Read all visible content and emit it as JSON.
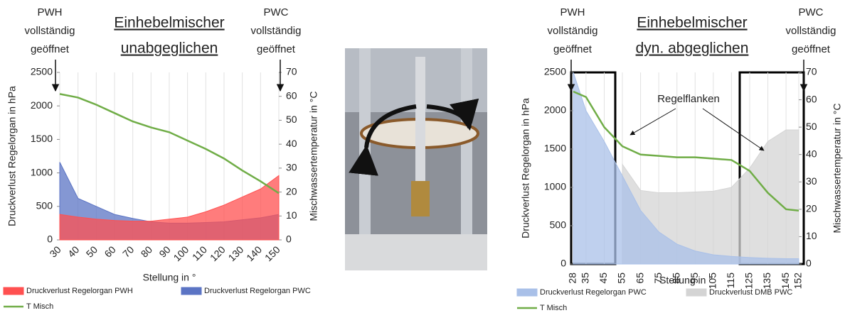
{
  "chart_data": [
    {
      "type": "area-line",
      "title": [
        "Einhebelmischer",
        "unabgeglichen"
      ],
      "left_note": [
        "PWH",
        "vollständig",
        "geöffnet"
      ],
      "right_note": [
        "PWC",
        "vollständig",
        "geöffnet"
      ],
      "x_label": "Stellung in °",
      "y_label": "Druckverlust Regelorgan in hPa",
      "y2_label": "Mischwassertemperatur in °C",
      "x": [
        30,
        40,
        50,
        60,
        70,
        80,
        90,
        100,
        110,
        120,
        130,
        140,
        150
      ],
      "xlim": [
        30,
        150
      ],
      "xticks": [
        30,
        40,
        50,
        60,
        70,
        80,
        90,
        100,
        110,
        120,
        130,
        140,
        150
      ],
      "ylim": [
        0,
        2500
      ],
      "yticks": [
        0,
        500,
        1000,
        1500,
        2000,
        2500
      ],
      "y2lim": [
        0,
        70
      ],
      "y2ticks": [
        0,
        10,
        20,
        30,
        40,
        50,
        60,
        70
      ],
      "grid": true,
      "series": [
        {
          "name": "Druckverlust Regelorgan PWH",
          "type": "area",
          "color": "#ff5050",
          "values": [
            380,
            340,
            310,
            290,
            280,
            280,
            310,
            340,
            420,
            520,
            640,
            760,
            960
          ]
        },
        {
          "name": "Druckverlust Regelorgan PWC",
          "type": "area",
          "color": "#5b74c4",
          "values": [
            1160,
            620,
            500,
            380,
            320,
            270,
            250,
            250,
            260,
            270,
            300,
            330,
            380
          ]
        },
        {
          "name": "T Misch",
          "type": "line",
          "axis": "y2",
          "color": "#70ad47",
          "values": [
            61,
            59.5,
            56.5,
            53,
            49.5,
            47,
            45,
            41.5,
            38,
            34,
            29,
            24.5,
            19.5
          ]
        }
      ]
    },
    {
      "type": "area-line",
      "title": [
        "Einhebelmischer",
        "dyn. abgeglichen"
      ],
      "left_note": [
        "PWH",
        "vollständig",
        "geöffnet"
      ],
      "right_note": [
        "PWC",
        "vollständig",
        "geöffnet"
      ],
      "annotation": "Regelflanken",
      "x_label": "Stellung in °",
      "y_label": "Druckverlust Regelorgan in hPa",
      "y2_label": "Mischwassertemperatur in °C",
      "x": [
        28,
        35,
        45,
        55,
        65,
        75,
        85,
        95,
        105,
        115,
        125,
        135,
        145,
        152
      ],
      "xlim": [
        28,
        152
      ],
      "xticks": [
        28,
        35,
        45,
        55,
        65,
        75,
        85,
        95,
        105,
        115,
        125,
        135,
        145,
        152
      ],
      "ylim": [
        0,
        2500
      ],
      "yticks": [
        0,
        500,
        1000,
        1500,
        2000,
        2500
      ],
      "y2lim": [
        0,
        70
      ],
      "y2ticks": [
        0,
        10,
        20,
        30,
        40,
        50,
        60,
        70
      ],
      "grid": true,
      "series": [
        {
          "name": "Druckverlust Regelorgan PWC",
          "type": "area",
          "color": "#a9c0e8",
          "values": [
            2500,
            2000,
            1600,
            1150,
            700,
            420,
            260,
            170,
            120,
            100,
            85,
            75,
            70,
            70
          ]
        },
        {
          "name": "Druckverlust DMB PWC",
          "type": "area",
          "color": "#d4d4d4",
          "values": [
            null,
            null,
            null,
            1300,
            960,
            930,
            930,
            940,
            950,
            1000,
            1250,
            1600,
            1750,
            1750
          ]
        },
        {
          "name": "T Misch",
          "type": "line",
          "axis": "y2",
          "color": "#70ad47",
          "values": [
            63,
            61,
            50,
            43,
            40,
            39.5,
            39,
            39,
            38.5,
            38,
            34,
            26,
            20,
            19.5
          ]
        }
      ]
    }
  ]
}
